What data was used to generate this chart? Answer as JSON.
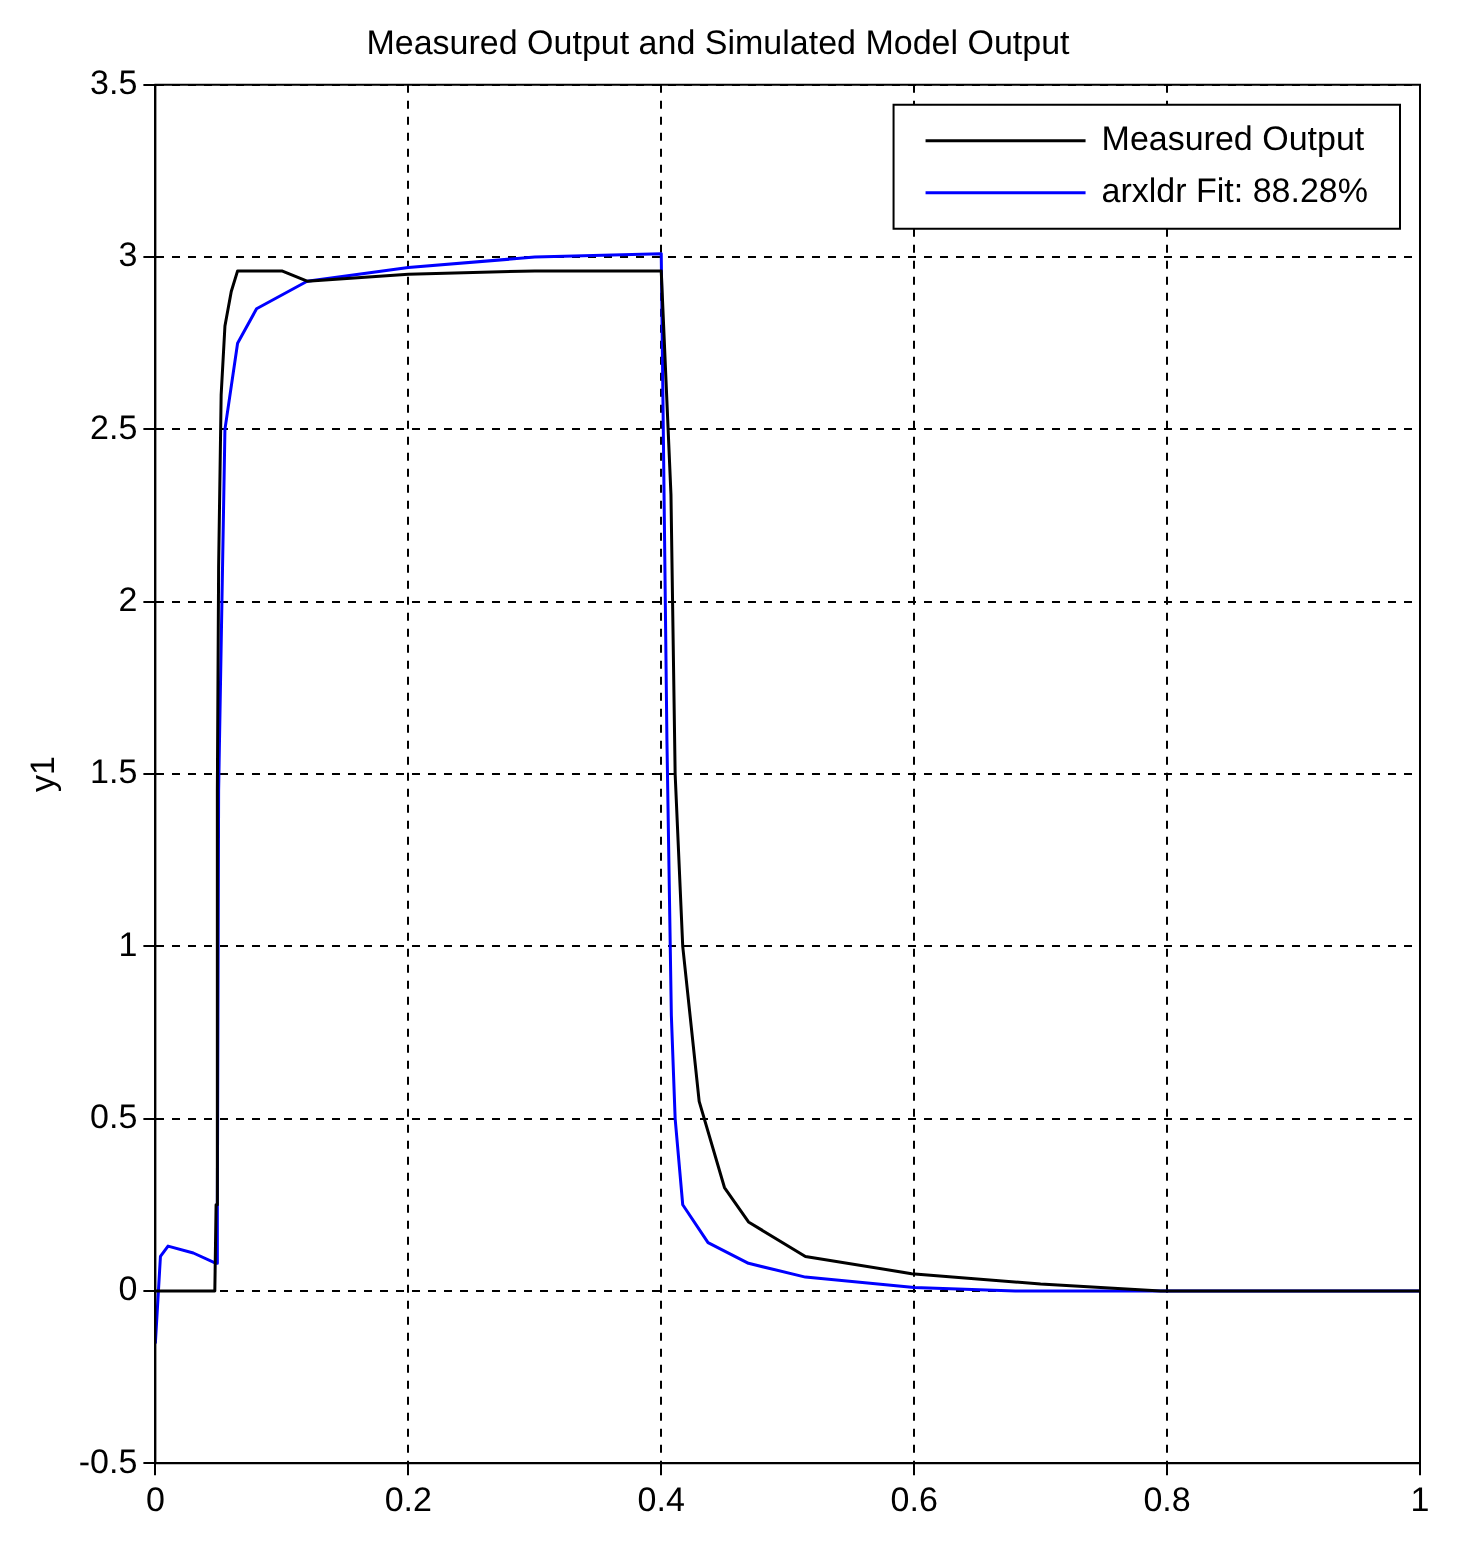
{
  "chart_data": {
    "type": "line",
    "title": "Measured Output and Simulated Model Output",
    "ylabel": "y1",
    "xlim": [
      0,
      1
    ],
    "ylim": [
      -0.5,
      3.5
    ],
    "xticks": [
      0,
      0.2,
      0.4,
      0.6,
      0.8,
      1
    ],
    "yticks": [
      -0.5,
      0,
      0.5,
      1,
      1.5,
      2,
      2.5,
      3,
      3.5
    ],
    "grid": true,
    "legend": "top right",
    "marker": "none",
    "line_style": "solid",
    "series": [
      {
        "name": "Measured Output",
        "color": "#000000",
        "x": [
          0,
          0.047,
          0.048,
          0.049,
          0.05,
          0.052,
          0.055,
          0.06,
          0.065,
          0.1,
          0.12,
          0.2,
          0.3,
          0.4,
          0.4077,
          0.411,
          0.417,
          0.43,
          0.45,
          0.469,
          0.514,
          0.598,
          0.7,
          0.795,
          1
        ],
        "values": [
          0,
          0,
          0.25,
          1.45,
          2.1,
          2.6,
          2.8,
          2.9,
          2.96,
          2.96,
          2.93,
          2.95,
          2.96,
          2.96,
          2.31,
          1.5,
          1.0,
          0.55,
          0.3,
          0.2,
          0.1,
          0.05,
          0.02,
          0,
          0
        ]
      },
      {
        "name": "arxldr Fit: 88.28%",
        "color": "#0000ff",
        "x": [
          0,
          0.004,
          0.01,
          0.03,
          0.048,
          0.049,
          0.05,
          0.055,
          0.065,
          0.08,
          0.12,
          0.2,
          0.3,
          0.4,
          0.4045,
          0.408,
          0.411,
          0.417,
          0.437,
          0.469,
          0.514,
          0.6,
          0.68,
          1
        ],
        "values": [
          -0.15,
          0.1,
          0.13,
          0.11,
          0.08,
          0.25,
          1.45,
          2.5,
          2.75,
          2.85,
          2.93,
          2.97,
          3.0,
          3.01,
          1.6,
          0.8,
          0.5,
          0.25,
          0.14,
          0.08,
          0.04,
          0.01,
          0,
          0
        ]
      }
    ]
  }
}
